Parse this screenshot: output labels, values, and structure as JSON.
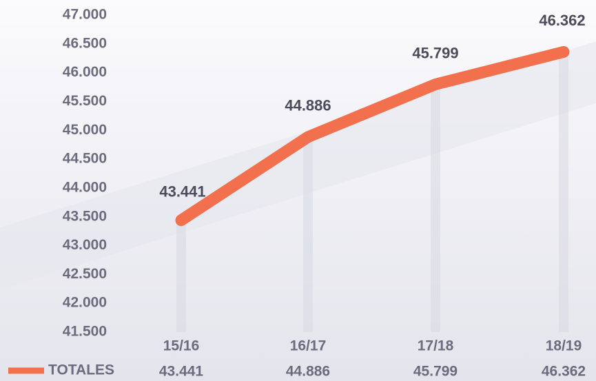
{
  "chart_data": {
    "type": "line",
    "categories": [
      "15/16",
      "16/17",
      "17/18",
      "18/19"
    ],
    "series": [
      {
        "name": "TOTALES",
        "color": "#f2704e",
        "values": [
          43441,
          44886,
          45799,
          46362
        ],
        "value_labels": [
          "43.441",
          "44.886",
          "45.799",
          "46.362"
        ]
      }
    ],
    "ylim": [
      41500,
      47000
    ],
    "yticks": [
      {
        "value": 41500,
        "label": "41.500"
      },
      {
        "value": 42000,
        "label": "42.000"
      },
      {
        "value": 42500,
        "label": "42.500"
      },
      {
        "value": 43000,
        "label": "43.000"
      },
      {
        "value": 43500,
        "label": "43.500"
      },
      {
        "value": 44000,
        "label": "44.000"
      },
      {
        "value": 44500,
        "label": "44.500"
      },
      {
        "value": 45000,
        "label": "45.000"
      },
      {
        "value": 45500,
        "label": "45.500"
      },
      {
        "value": 46000,
        "label": "46.000"
      },
      {
        "value": 46500,
        "label": "46.500"
      },
      {
        "value": 47000,
        "label": "47.000"
      }
    ],
    "legend": "bottom-left"
  }
}
